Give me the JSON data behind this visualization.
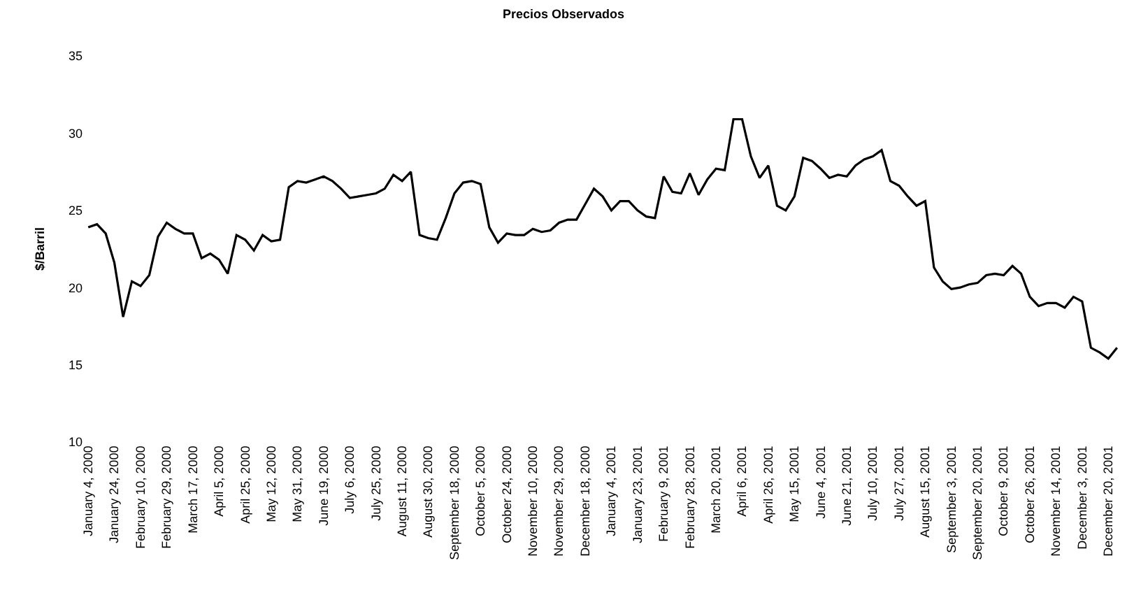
{
  "chart_data": {
    "type": "line",
    "title": "Precios Observados",
    "ylabel": "$/Barril",
    "categories": [
      "January 4, 2000",
      null,
      null,
      "January 24, 2000",
      null,
      null,
      "February 10, 2000",
      null,
      null,
      "February 29, 2000",
      null,
      null,
      "March 17, 2000",
      null,
      null,
      "April 5, 2000",
      null,
      null,
      "April 25, 2000",
      null,
      null,
      "May 12, 2000",
      null,
      null,
      "May 31, 2000",
      null,
      null,
      "June 19, 2000",
      null,
      null,
      "July 6, 2000",
      null,
      null,
      "July 25, 2000",
      null,
      null,
      "August 11, 2000",
      null,
      null,
      "August 30, 2000",
      null,
      null,
      "September 18, 2000",
      null,
      null,
      "October 5, 2000",
      null,
      null,
      "October 24, 2000",
      null,
      null,
      "November 10, 2000",
      null,
      null,
      "November 29, 2000",
      null,
      null,
      "December 18, 2000",
      null,
      null,
      "January 4, 2001",
      null,
      null,
      "January 23, 2001",
      null,
      null,
      "February 9, 2001",
      null,
      null,
      "February 28, 2001",
      null,
      null,
      "March 20, 2001",
      null,
      null,
      "April 6, 2001",
      null,
      null,
      "April 26, 2001",
      null,
      null,
      "May 15, 2001",
      null,
      null,
      "June 4, 2001",
      null,
      null,
      "June 21, 2001",
      null,
      null,
      "July 10, 2001",
      null,
      null,
      "July 27, 2001",
      null,
      null,
      "August 15, 2001",
      null,
      null,
      "September 3, 2001",
      null,
      null,
      "September 20, 2001",
      null,
      null,
      "October 9, 2001",
      null,
      null,
      "October 26, 2001",
      null,
      null,
      "November 14, 2001",
      null,
      null,
      "December 3, 2001",
      null,
      null,
      "December 20, 2001",
      null
    ],
    "series": [
      {
        "color": "#000000",
        "values": [
          23.9,
          24.1,
          23.5,
          21.6,
          18.1,
          20.4,
          20.1,
          20.8,
          23.3,
          24.2,
          23.8,
          23.5,
          23.5,
          21.9,
          22.2,
          21.8,
          20.9,
          23.4,
          23.1,
          22.4,
          23.4,
          23.0,
          23.1,
          26.5,
          26.9,
          26.8,
          27.0,
          27.2,
          26.9,
          26.4,
          25.8,
          25.9,
          26.0,
          26.1,
          26.4,
          27.3,
          26.9,
          27.5,
          23.4,
          23.2,
          23.1,
          24.5,
          26.1,
          26.8,
          26.9,
          26.7,
          23.9,
          22.9,
          23.5,
          23.4,
          23.4,
          23.8,
          23.6,
          23.7,
          24.2,
          24.4,
          24.4,
          25.4,
          26.4,
          25.9,
          25.0,
          25.6,
          25.6,
          25.0,
          24.6,
          24.5,
          27.2,
          26.2,
          26.1,
          27.4,
          26.0,
          27.0,
          27.7,
          27.6,
          30.9,
          30.9,
          28.5,
          27.1,
          27.9,
          25.3,
          25.0,
          25.9,
          28.4,
          28.2,
          27.7,
          27.1,
          27.3,
          27.2,
          27.9,
          28.3,
          28.5,
          28.9,
          26.9,
          26.6,
          25.9,
          25.3,
          25.6,
          21.3,
          20.4,
          19.9,
          20.0,
          20.2,
          20.3,
          20.8,
          20.9,
          20.8,
          21.4,
          20.9,
          19.4,
          18.8,
          19.0,
          19.0,
          18.7,
          19.4,
          19.1,
          16.1,
          15.8,
          15.4,
          16.1
        ]
      }
    ],
    "ylim": [
      10,
      35
    ],
    "yticks": [
      10,
      15,
      20,
      25,
      30,
      35
    ],
    "marker": "none",
    "line_style": "solid"
  }
}
